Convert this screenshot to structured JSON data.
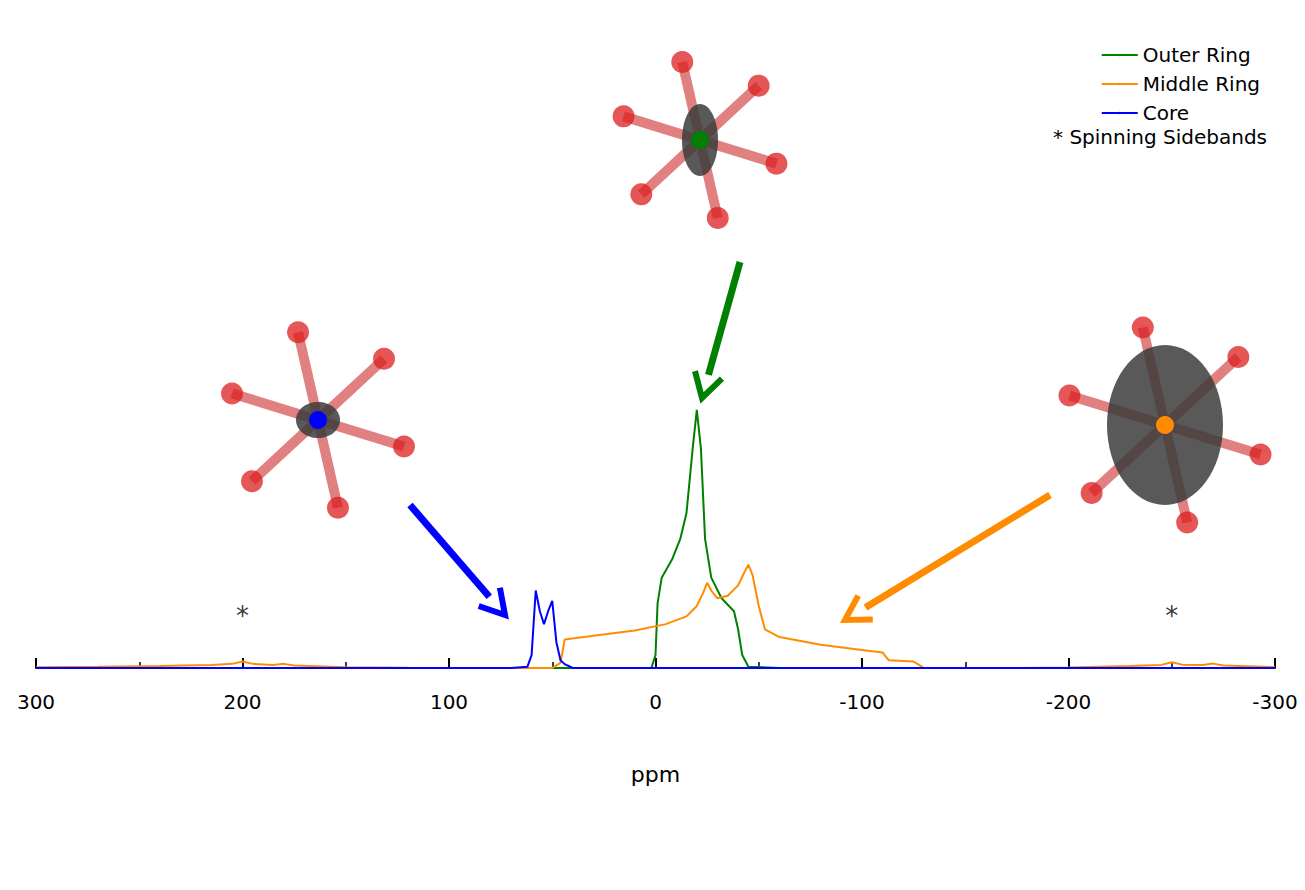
{
  "chart_data": {
    "type": "line",
    "x_label": "ppm",
    "xlim": [
      300,
      -300
    ],
    "xticks": [
      300,
      200,
      100,
      0,
      -100,
      -200,
      -300
    ],
    "ylim": [
      0,
      1.1
    ],
    "tick_labels": "x",
    "grid": false,
    "legend": "upper right",
    "series": [
      {
        "name": "Outer Ring",
        "color": "#008000",
        "x": [
          300,
          20,
          2,
          0,
          -1,
          -3,
          -8,
          -12,
          -15,
          -18,
          -20,
          -22,
          -24,
          -27,
          -32,
          -38,
          -40,
          -42,
          -45,
          -60,
          -300
        ],
        "values": [
          0,
          0,
          0,
          0.05,
          0.25,
          0.35,
          0.42,
          0.5,
          0.6,
          0.85,
          1.0,
          0.85,
          0.5,
          0.35,
          0.27,
          0.22,
          0.15,
          0.05,
          0.005,
          0,
          0
        ]
      },
      {
        "name": "Middle Ring",
        "color": "#ff8c00",
        "x": [
          300,
          270,
          240,
          215,
          205,
          200,
          195,
          185,
          180,
          175,
          150,
          120,
          80,
          50,
          46,
          44,
          30,
          10,
          -5,
          -15,
          -20,
          -23,
          -25,
          -27,
          -30,
          -35,
          -40,
          -43,
          -45,
          -47,
          -50,
          -53,
          -60,
          -80,
          -100,
          -110,
          -113,
          -125,
          -128,
          -130,
          -170,
          -200,
          -230,
          -245,
          -250,
          -255,
          -265,
          -270,
          -275,
          -300
        ],
        "values": [
          0.003,
          0.005,
          0.008,
          0.012,
          0.016,
          0.025,
          0.016,
          0.012,
          0.016,
          0.01,
          0.003,
          0.001,
          0,
          0,
          0.02,
          0.11,
          0.125,
          0.145,
          0.17,
          0.2,
          0.24,
          0.29,
          0.33,
          0.3,
          0.27,
          0.28,
          0.32,
          0.37,
          0.4,
          0.36,
          0.24,
          0.15,
          0.12,
          0.09,
          0.07,
          0.06,
          0.03,
          0.025,
          0.01,
          0,
          0,
          0.002,
          0.008,
          0.012,
          0.022,
          0.013,
          0.012,
          0.017,
          0.01,
          0.003
        ]
      },
      {
        "name": "Core",
        "color": "#0000ff",
        "x": [
          300,
          70,
          62,
          60,
          58,
          56,
          54,
          52,
          50,
          48,
          46,
          44,
          40,
          30,
          -300
        ],
        "values": [
          0,
          0,
          0.005,
          0.05,
          0.3,
          0.22,
          0.17,
          0.22,
          0.26,
          0.1,
          0.03,
          0.015,
          0,
          0,
          0
        ]
      }
    ],
    "annotations": [
      {
        "text": "*",
        "x": 200,
        "y": 0.2
      },
      {
        "text": "*",
        "x": -250,
        "y": 0.2
      },
      {
        "text": "* Spinning Sidebands"
      }
    ]
  }
}
